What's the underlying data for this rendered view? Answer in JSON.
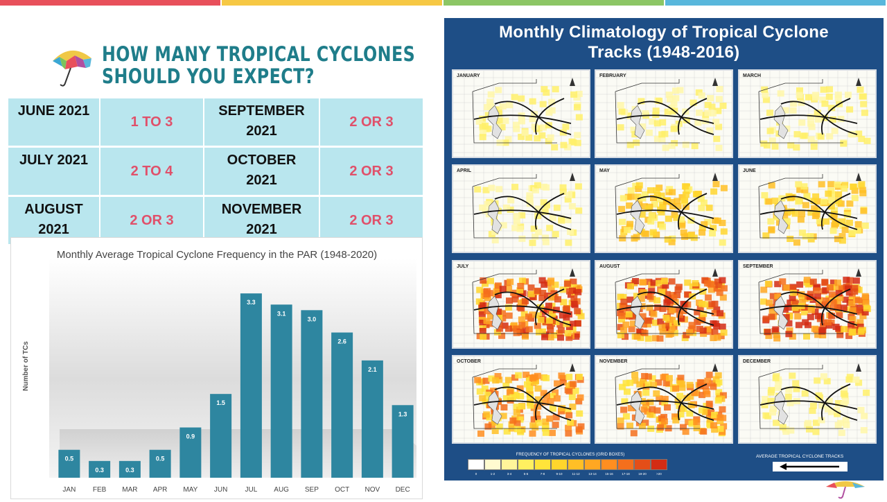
{
  "stripes": [
    "#e8505b",
    "#f6c844",
    "#8cc665",
    "#58b7dc"
  ],
  "title_lines": [
    "HOW MANY TROPICAL CYCLONES",
    "SHOULD YOU EXPECT?"
  ],
  "forecast": {
    "rows": [
      [
        {
          "month": [
            "JUNE 2021"
          ],
          "value": "1 TO 3"
        },
        {
          "month": [
            "SEPTEMBER",
            "2021"
          ],
          "value": "2 OR 3"
        }
      ],
      [
        {
          "month": [
            "JULY 2021"
          ],
          "value": "2 TO 4"
        },
        {
          "month": [
            "OCTOBER",
            "2021"
          ],
          "value": "2 OR 3"
        }
      ],
      [
        {
          "month": [
            "AUGUST",
            "2021"
          ],
          "value": "2 OR 3"
        },
        {
          "month": [
            "NOVEMBER",
            "2021"
          ],
          "value": "2 OR 3"
        }
      ]
    ]
  },
  "chart_data": {
    "type": "bar",
    "title": "Monthly Average Tropical Cyclone Frequency in the PAR (1948-2020)",
    "xlabel": "",
    "ylabel": "Number of TCs",
    "categories": [
      "JAN",
      "FEB",
      "MAR",
      "APR",
      "MAY",
      "JUN",
      "JUL",
      "AUG",
      "SEP",
      "OCT",
      "NOV",
      "DEC"
    ],
    "values": [
      0.5,
      0.3,
      0.3,
      0.5,
      0.9,
      1.5,
      3.3,
      3.1,
      3.0,
      2.6,
      2.1,
      1.3
    ],
    "value_labels": [
      "0.5",
      "0.3",
      "0.3",
      "0.5",
      "0.9",
      "1.5",
      "3.3",
      "3.1",
      "3.0",
      "2.6",
      "2.1",
      "1.3"
    ],
    "ylim": [
      0,
      3.6
    ],
    "bar_color": "#2e86a0",
    "grid": false,
    "legend": "none"
  },
  "panel": {
    "title_lines": [
      "Monthly Climatology of Tropical Cyclone",
      "Tracks (1948-2016)"
    ],
    "months": [
      "JANUARY",
      "FEBRUARY",
      "MARCH",
      "APRIL",
      "MAY",
      "JUNE",
      "JULY",
      "AUGUST",
      "SEPTEMBER",
      "OCTOBER",
      "NOVEMBER",
      "DECEMBER"
    ],
    "density": [
      1,
      1,
      1,
      1,
      2,
      2,
      4,
      4,
      4,
      3,
      3,
      1
    ],
    "legend_label": "FREQUENCY OF TROPICAL CYCLONES (GRID BOXES)",
    "legend_ticks": [
      "0",
      "1-2",
      "3-4",
      "5-6",
      "7-8",
      "9-10",
      "11-12",
      "13-14",
      "15-16",
      "17-18",
      "19-20",
      ">20"
    ],
    "legend_colors": [
      "#ffffff",
      "#fffbd0",
      "#fff59a",
      "#fff060",
      "#ffe43a",
      "#ffd52c",
      "#ffbf26",
      "#ffa722",
      "#ff8e20",
      "#f46f1c",
      "#e44e18",
      "#d32c14"
    ],
    "avg_tracks_label": "AVERAGE TROPICAL CYCLONE TRACKS"
  }
}
